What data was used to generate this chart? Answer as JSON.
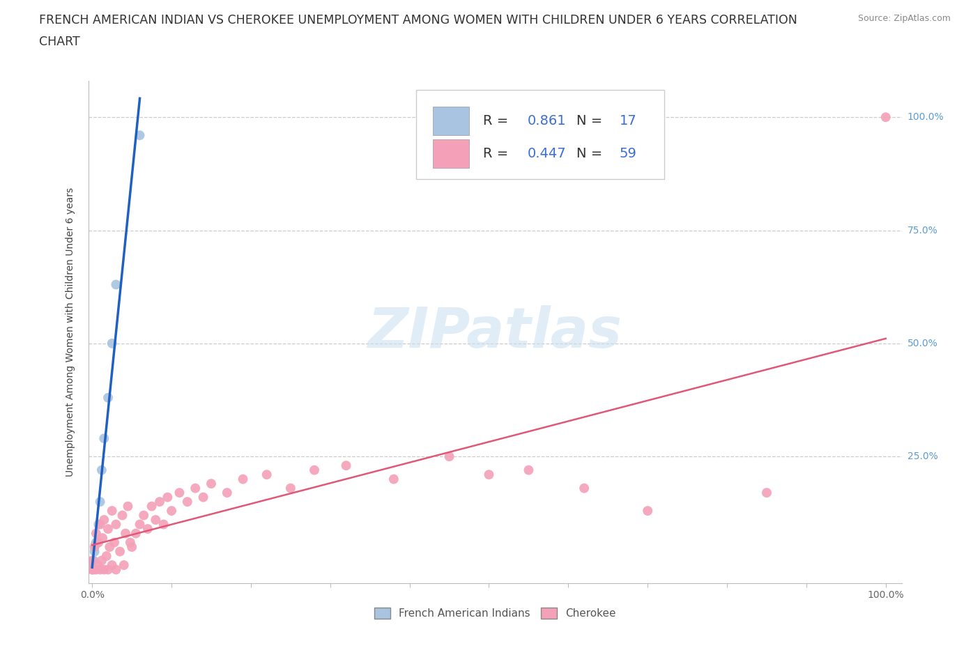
{
  "title_line1": "FRENCH AMERICAN INDIAN VS CHEROKEE UNEMPLOYMENT AMONG WOMEN WITH CHILDREN UNDER 6 YEARS CORRELATION",
  "title_line2": "CHART",
  "source": "Source: ZipAtlas.com",
  "ylabel": "Unemployment Among Women with Children Under 6 years",
  "blue_R": 0.861,
  "blue_N": 17,
  "pink_R": 0.447,
  "pink_N": 59,
  "blue_color": "#a8c4e0",
  "blue_line_color": "#2060c0",
  "pink_color": "#f4a0b8",
  "pink_line_color": "#e05878",
  "background_color": "#ffffff",
  "grid_color": "#cccccc",
  "right_axis_color": "#5b9bd5",
  "title_fontsize": 12.5,
  "axis_label_fontsize": 10,
  "tick_fontsize": 10,
  "watermark_text": "ZIPatlas",
  "bottom_legend_blue": "French American Indians",
  "bottom_legend_pink": "Cherokee",
  "blue_x": [
    0.0,
    0.0,
    0.0,
    0.0,
    0.0,
    0.002,
    0.003,
    0.004,
    0.005,
    0.008,
    0.01,
    0.012,
    0.015,
    0.02,
    0.025,
    0.03,
    0.06
  ],
  "blue_y": [
    0.0,
    0.003,
    0.005,
    0.01,
    0.015,
    0.02,
    0.04,
    0.055,
    0.06,
    0.1,
    0.15,
    0.22,
    0.29,
    0.38,
    0.5,
    0.63,
    0.96
  ],
  "pink_x": [
    0.0,
    0.0,
    0.002,
    0.003,
    0.005,
    0.005,
    0.007,
    0.008,
    0.01,
    0.01,
    0.012,
    0.013,
    0.015,
    0.015,
    0.018,
    0.02,
    0.02,
    0.022,
    0.025,
    0.025,
    0.028,
    0.03,
    0.03,
    0.035,
    0.038,
    0.04,
    0.042,
    0.045,
    0.048,
    0.05,
    0.055,
    0.06,
    0.065,
    0.07,
    0.075,
    0.08,
    0.085,
    0.09,
    0.095,
    0.1,
    0.11,
    0.12,
    0.13,
    0.14,
    0.15,
    0.17,
    0.19,
    0.22,
    0.25,
    0.28,
    0.32,
    0.38,
    0.45,
    0.5,
    0.55,
    0.62,
    0.7,
    0.85,
    1.0
  ],
  "pink_y": [
    0.0,
    0.02,
    0.0,
    0.05,
    0.0,
    0.08,
    0.01,
    0.06,
    0.0,
    0.1,
    0.02,
    0.07,
    0.0,
    0.11,
    0.03,
    0.0,
    0.09,
    0.05,
    0.01,
    0.13,
    0.06,
    0.0,
    0.1,
    0.04,
    0.12,
    0.01,
    0.08,
    0.14,
    0.06,
    0.05,
    0.08,
    0.1,
    0.12,
    0.09,
    0.14,
    0.11,
    0.15,
    0.1,
    0.16,
    0.13,
    0.17,
    0.15,
    0.18,
    0.16,
    0.19,
    0.17,
    0.2,
    0.21,
    0.18,
    0.22,
    0.23,
    0.2,
    0.25,
    0.21,
    0.22,
    0.18,
    0.13,
    0.17,
    1.0
  ]
}
